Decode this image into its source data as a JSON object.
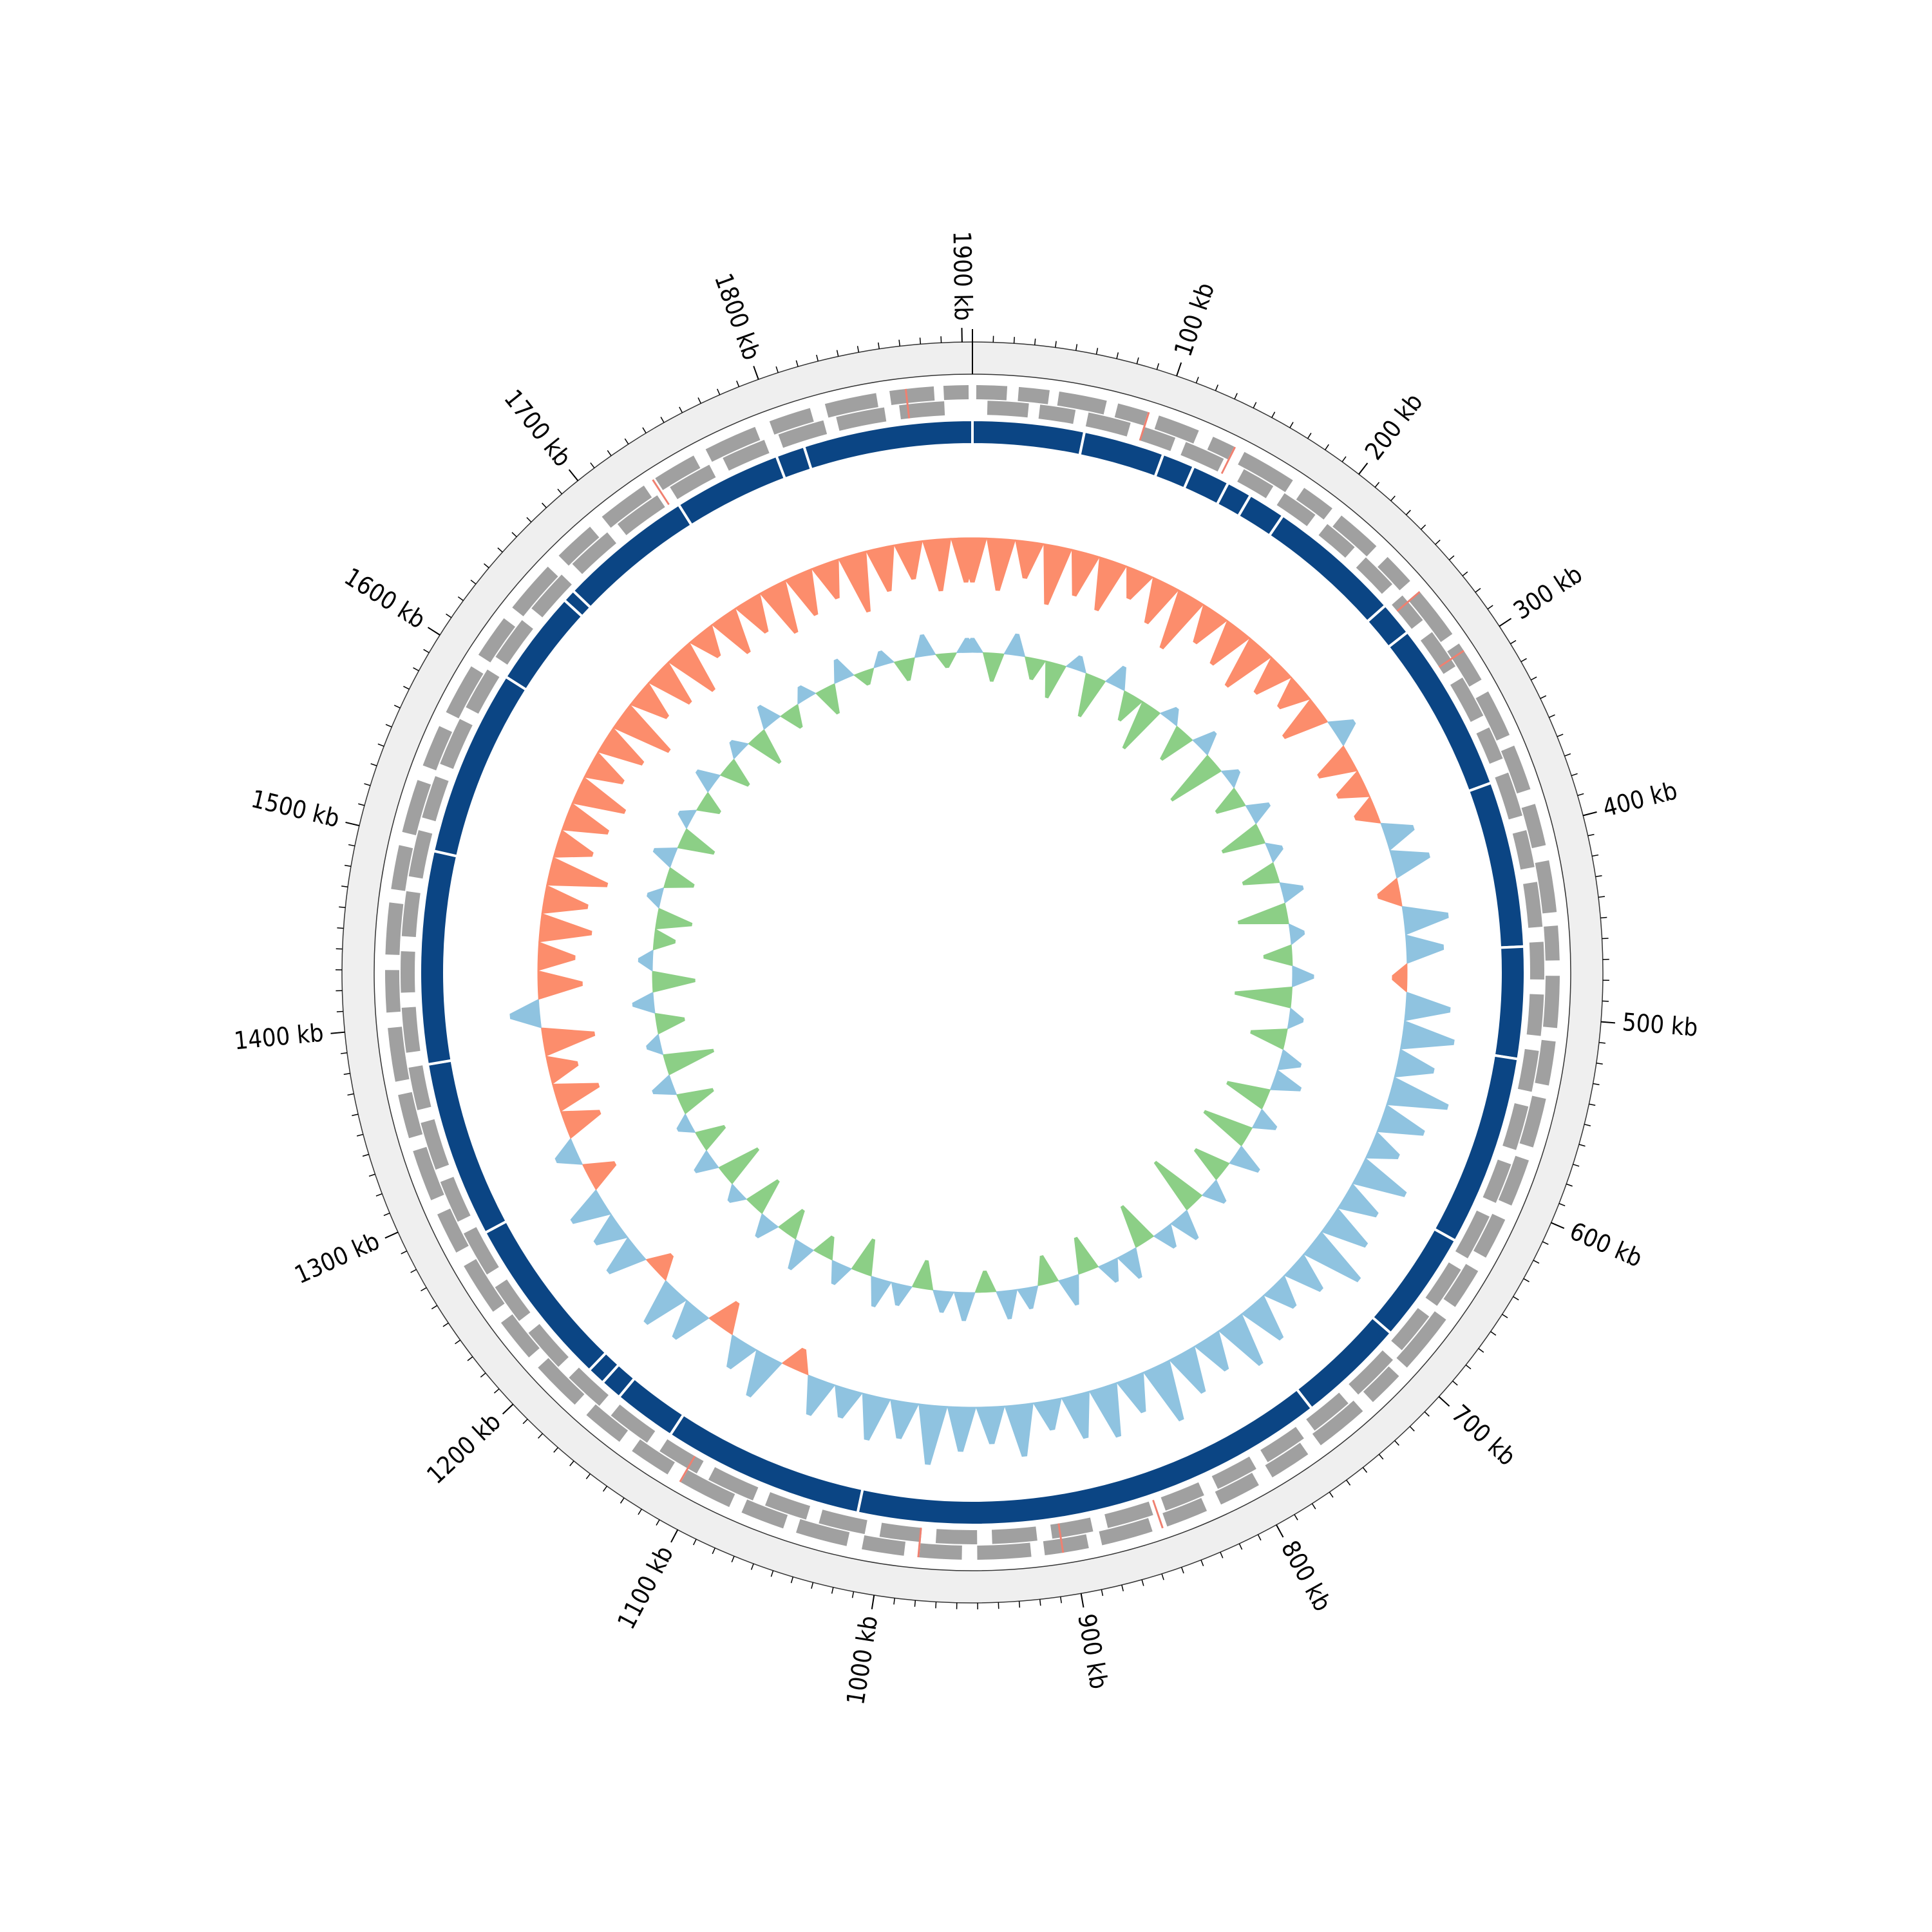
{
  "chart_data": {
    "type": "circular",
    "xlim": [
      0,
      1905
    ],
    "xticks": [
      {
        "value": 100,
        "label": "100 kb"
      },
      {
        "value": 200,
        "label": "200 kb"
      },
      {
        "value": 300,
        "label": "300 kb"
      },
      {
        "value": 400,
        "label": "400 kb"
      },
      {
        "value": 500,
        "label": "500 kb"
      },
      {
        "value": 600,
        "label": "600 kb"
      },
      {
        "value": 700,
        "label": "700 kb"
      },
      {
        "value": 800,
        "label": "800 kb"
      },
      {
        "value": 900,
        "label": "900 kb"
      },
      {
        "value": 1000,
        "label": "1000 kb"
      },
      {
        "value": 1100,
        "label": "1100 kb"
      },
      {
        "value": 1200,
        "label": "1200 kb"
      },
      {
        "value": 1300,
        "label": "1300 kb"
      },
      {
        "value": 1400,
        "label": "1400 kb"
      },
      {
        "value": 1500,
        "label": "1500 kb"
      },
      {
        "value": 1600,
        "label": "1600 kb"
      },
      {
        "value": 1700,
        "label": "1700 kb"
      },
      {
        "value": 1800,
        "label": "1800 kb"
      },
      {
        "value": 1900,
        "label": "1900 kb"
      }
    ],
    "minor_tick_interval": 10,
    "genes": {
      "color": "#a0a0a0",
      "rna_color": "#f08070",
      "forward": [
        [
          2,
          18
        ],
        [
          24,
          40
        ],
        [
          45,
          70
        ],
        [
          76,
          92
        ],
        [
          98,
          120
        ],
        [
          128,
          140
        ],
        [
          146,
          175
        ],
        [
          182,
          200
        ],
        [
          206,
          230
        ],
        [
          238,
          255
        ],
        [
          262,
          290
        ],
        [
          296,
          318
        ],
        [
          325,
          350
        ],
        [
          356,
          380
        ],
        [
          388,
          410
        ],
        [
          418,
          445
        ],
        [
          452,
          470
        ],
        [
          478,
          505
        ],
        [
          512,
          535
        ],
        [
          542,
          568
        ],
        [
          575,
          600
        ],
        [
          608,
          630
        ],
        [
          638,
          660
        ],
        [
          668,
          700
        ],
        [
          706,
          725
        ],
        [
          732,
          760
        ],
        [
          768,
          790
        ],
        [
          798,
          820
        ],
        [
          828,
          850
        ],
        [
          858,
          885
        ],
        [
          892,
          915
        ],
        [
          922,
          950
        ],
        [
          958,
          980
        ],
        [
          988,
          1010
        ],
        [
          1018,
          1045
        ],
        [
          1052,
          1075
        ],
        [
          1082,
          1110
        ],
        [
          1118,
          1140
        ],
        [
          1148,
          1170
        ],
        [
          1178,
          1205
        ],
        [
          1212,
          1235
        ],
        [
          1242,
          1270
        ],
        [
          1278,
          1300
        ],
        [
          1308,
          1335
        ],
        [
          1342,
          1365
        ],
        [
          1372,
          1400
        ],
        [
          1408,
          1430
        ],
        [
          1438,
          1465
        ],
        [
          1472,
          1495
        ],
        [
          1502,
          1530
        ],
        [
          1538,
          1560
        ],
        [
          1568,
          1595
        ],
        [
          1602,
          1625
        ],
        [
          1632,
          1660
        ],
        [
          1668,
          1690
        ],
        [
          1698,
          1725
        ],
        [
          1732,
          1755
        ],
        [
          1762,
          1790
        ],
        [
          1798,
          1820
        ],
        [
          1828,
          1855
        ],
        [
          1862,
          1885
        ],
        [
          1890,
          1903
        ]
      ],
      "reverse": [
        [
          8,
          30
        ],
        [
          36,
          55
        ],
        [
          62,
          85
        ],
        [
          92,
          110
        ],
        [
          116,
          138
        ],
        [
          150,
          168
        ],
        [
          175,
          195
        ],
        [
          203,
          222
        ],
        [
          230,
          250
        ],
        [
          258,
          275
        ],
        [
          283,
          305
        ],
        [
          312,
          335
        ],
        [
          342,
          360
        ],
        [
          368,
          392
        ],
        [
          400,
          420
        ],
        [
          428,
          452
        ],
        [
          460,
          480
        ],
        [
          488,
          510
        ],
        [
          518,
          540
        ],
        [
          548,
          572
        ],
        [
          580,
          602
        ],
        [
          610,
          635
        ],
        [
          642,
          665
        ],
        [
          672,
          695
        ],
        [
          702,
          728
        ],
        [
          735,
          758
        ],
        [
          765,
          788
        ],
        [
          795,
          818
        ],
        [
          826,
          848
        ],
        [
          855,
          880
        ],
        [
          888,
          910
        ],
        [
          918,
          942
        ],
        [
          950,
          972
        ],
        [
          980,
          1002
        ],
        [
          1010,
          1035
        ],
        [
          1042,
          1065
        ],
        [
          1072,
          1098
        ],
        [
          1105,
          1128
        ],
        [
          1136,
          1160
        ],
        [
          1168,
          1190
        ],
        [
          1198,
          1222
        ],
        [
          1230,
          1252
        ],
        [
          1260,
          1285
        ],
        [
          1292,
          1315
        ],
        [
          1322,
          1348
        ],
        [
          1355,
          1378
        ],
        [
          1386,
          1410
        ],
        [
          1418,
          1440
        ],
        [
          1448,
          1472
        ],
        [
          1480,
          1505
        ],
        [
          1512,
          1535
        ],
        [
          1542,
          1568
        ],
        [
          1575,
          1598
        ],
        [
          1606,
          1630
        ],
        [
          1638,
          1662
        ],
        [
          1670,
          1695
        ],
        [
          1702,
          1728
        ],
        [
          1736,
          1760
        ],
        [
          1768,
          1792
        ],
        [
          1800,
          1825
        ],
        [
          1832,
          1858
        ],
        [
          1866,
          1890
        ]
      ],
      "rna": [
        [
          92,
          93
        ],
        [
          140,
          141
        ],
        [
          262,
          263
        ],
        [
          300,
          301
        ],
        [
          852,
          853
        ],
        [
          905,
          906
        ],
        [
          980,
          981
        ],
        [
          1110,
          1111
        ],
        [
          1730,
          1731
        ],
        [
          1870,
          1871
        ]
      ]
    },
    "contigs": {
      "color": "#0b4584",
      "boundaries": [
        0,
        62,
        107,
        125,
        146,
        160,
        181,
        256,
        275,
        370,
        462,
        524,
        630,
        692,
        752,
        1016,
        1128,
        1163,
        1175,
        1185,
        1280,
        1378,
        1496,
        1600,
        1653,
        1660,
        1735,
        1795,
        1811,
        1905
      ]
    },
    "x": [
      0,
      20,
      40,
      60,
      80,
      100,
      120,
      140,
      160,
      180,
      200,
      220,
      240,
      260,
      280,
      300,
      320,
      340,
      360,
      380,
      400,
      420,
      440,
      460,
      480,
      500,
      520,
      540,
      560,
      580,
      600,
      620,
      640,
      660,
      680,
      700,
      720,
      740,
      760,
      780,
      800,
      820,
      840,
      860,
      880,
      900,
      920,
      940,
      960,
      980,
      1000,
      1020,
      1040,
      1060,
      1080,
      1100,
      1120,
      1140,
      1160,
      1180,
      1200,
      1220,
      1240,
      1260,
      1280,
      1300,
      1320,
      1340,
      1360,
      1380,
      1400,
      1420,
      1440,
      1460,
      1480,
      1500,
      1520,
      1540,
      1560,
      1580,
      1600,
      1620,
      1640,
      1660,
      1680,
      1700,
      1720,
      1740,
      1760,
      1780,
      1800,
      1820,
      1840,
      1860,
      1880,
      1900
    ],
    "gc_content": {
      "ylim": [
        -0.1,
        0.1
      ],
      "color_positive": "#8fc3e0",
      "color_negative": "#fc8d6c",
      "values": [
        -0.06,
        -0.07,
        -0.05,
        -0.08,
        -0.06,
        -0.07,
        -0.04,
        -0.06,
        -0.08,
        -0.05,
        -0.06,
        -0.07,
        -0.05,
        -0.04,
        -0.06,
        0.03,
        -0.05,
        -0.04,
        -0.03,
        0.04,
        0.05,
        -0.03,
        0.06,
        0.05,
        -0.02,
        0.06,
        0.07,
        0.05,
        0.08,
        0.06,
        0.04,
        0.07,
        0.05,
        0.06,
        0.08,
        0.05,
        0.04,
        0.06,
        0.07,
        0.05,
        0.06,
        0.08,
        0.05,
        0.07,
        0.06,
        0.04,
        0.07,
        0.05,
        0.06,
        0.08,
        0.05,
        0.06,
        0.04,
        0.05,
        -0.03,
        0.06,
        0.04,
        -0.04,
        0.05,
        0.06,
        -0.03,
        0.05,
        0.04,
        0.05,
        -0.04,
        0.03,
        -0.05,
        -0.06,
        -0.04,
        -0.07,
        0.04,
        -0.06,
        -0.05,
        -0.07,
        -0.06,
        -0.08,
        -0.05,
        -0.06,
        -0.07,
        -0.05,
        -0.06,
        -0.08,
        -0.05,
        -0.06,
        -0.07,
        -0.04,
        -0.06,
        -0.05,
        -0.07,
        -0.06,
        -0.05,
        -0.08,
        -0.06,
        -0.05,
        -0.07,
        -0.06
      ]
    },
    "gc_skew": {
      "ylim": [
        -0.1,
        0.1
      ],
      "color_positive": "#8fc3e0",
      "color_negative": "#8ccf86",
      "values": [
        0.02,
        -0.04,
        0.03,
        -0.03,
        -0.05,
        0.02,
        -0.06,
        0.03,
        -0.04,
        -0.07,
        0.02,
        -0.05,
        0.03,
        -0.08,
        0.02,
        -0.04,
        0.03,
        -0.06,
        0.02,
        -0.05,
        0.03,
        -0.07,
        0.02,
        -0.04,
        0.03,
        -0.08,
        0.02,
        -0.05,
        0.03,
        0.04,
        -0.06,
        0.03,
        -0.07,
        0.04,
        -0.05,
        0.03,
        -0.08,
        0.04,
        0.03,
        -0.06,
        0.04,
        0.03,
        -0.05,
        0.04,
        -0.04,
        0.03,
        0.04,
        -0.03,
        0.04,
        0.03,
        -0.04,
        0.03,
        0.04,
        -0.05,
        0.03,
        -0.03,
        0.04,
        -0.04,
        0.03,
        -0.05,
        0.02,
        -0.06,
        0.03,
        -0.04,
        0.02,
        -0.05,
        0.03,
        -0.07,
        0.02,
        -0.04,
        0.03,
        -0.06,
        0.02,
        -0.03,
        -0.05,
        0.02,
        -0.04,
        0.03,
        -0.05,
        0.02,
        -0.03,
        0.03,
        -0.04,
        0.02,
        -0.05,
        0.03,
        -0.03,
        0.02,
        -0.04,
        0.03,
        -0.02,
        0.02,
        -0.03,
        0.03,
        -0.02,
        0.02
      ]
    }
  }
}
